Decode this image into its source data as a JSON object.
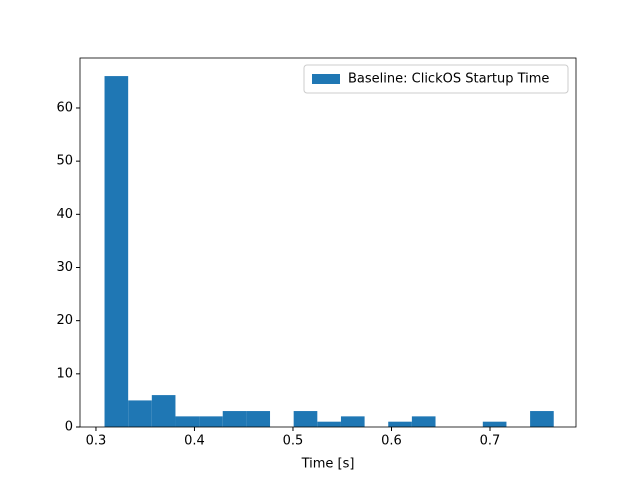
{
  "chart_data": {
    "type": "histogram",
    "xlabel": "Time [s]",
    "series": [
      {
        "name": "Baseline: ClickOS Startup Time",
        "color": "#1f77b4",
        "bins": [
          0.3087,
          0.3327,
          0.3567,
          0.3807,
          0.4047,
          0.4287,
          0.4527,
          0.4767,
          0.5007,
          0.5247,
          0.5487,
          0.5727,
          0.5967,
          0.6207,
          0.6447,
          0.6687,
          0.6927,
          0.7167,
          0.7407,
          0.7647
        ],
        "values": [
          66,
          5,
          6,
          2,
          2,
          3,
          3,
          0,
          3,
          1,
          2,
          0,
          1,
          2,
          0,
          0,
          1,
          0,
          3
        ]
      }
    ],
    "xlim": [
      0.2838,
      0.7873
    ],
    "xticks": [
      0.3,
      0.4,
      0.5,
      0.6,
      0.7
    ],
    "ylim": [
      0,
      69.4
    ],
    "yticks": [
      0,
      10,
      20,
      30,
      40,
      50,
      60
    ],
    "legend": "upper right"
  }
}
